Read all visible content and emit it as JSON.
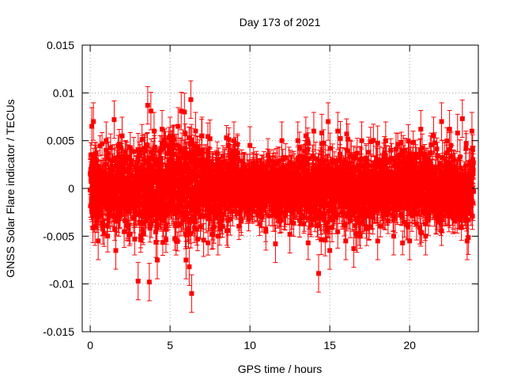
{
  "chart_data": {
    "type": "scatter",
    "title": "Day 173 of 2021",
    "xlabel": "GPS time / hours",
    "ylabel": "GNSS Solar Flare indicator / TECUs",
    "xlim": [
      -0.5,
      24.3
    ],
    "ylim": [
      -0.015,
      0.015
    ],
    "xticks": [
      0,
      5,
      10,
      15,
      20
    ],
    "xtick_labels": [
      "0",
      "5",
      "10",
      "15",
      "20"
    ],
    "yticks": [
      -0.015,
      -0.01,
      -0.005,
      0,
      0.005,
      0.01,
      0.015
    ],
    "ytick_labels": [
      "-0.015",
      "-0.01",
      "-0.005",
      "0",
      "0.005",
      "0.01",
      "0.015"
    ],
    "grid": true,
    "legend": "none",
    "series": [
      {
        "color": "#ff0000",
        "marker": "square",
        "error_bars": true,
        "x_range": [
          0,
          24
        ],
        "typical_error": 0.0014,
        "points": [
          {
            "x": 0.1,
            "y": 0.0065
          },
          {
            "x": 0.2,
            "y": 0.007
          },
          {
            "x": 0.3,
            "y": -0.004
          },
          {
            "x": 0.5,
            "y": -0.0055
          },
          {
            "x": 1.0,
            "y": 0.005
          },
          {
            "x": 1.5,
            "y": 0.0072
          },
          {
            "x": 1.6,
            "y": -0.0065
          },
          {
            "x": 2.0,
            "y": 0.0055
          },
          {
            "x": 3.0,
            "y": -0.0097
          },
          {
            "x": 3.6,
            "y": 0.0087
          },
          {
            "x": 3.7,
            "y": -0.0098
          },
          {
            "x": 3.8,
            "y": 0.0081
          },
          {
            "x": 4.0,
            "y": 0.006
          },
          {
            "x": 4.2,
            "y": -0.0075
          },
          {
            "x": 4.5,
            "y": 0.0062
          },
          {
            "x": 5.0,
            "y": 0.0055
          },
          {
            "x": 5.5,
            "y": 0.0065
          },
          {
            "x": 5.7,
            "y": 0.0081
          },
          {
            "x": 5.9,
            "y": 0.008
          },
          {
            "x": 6.0,
            "y": -0.0075
          },
          {
            "x": 6.2,
            "y": -0.0082
          },
          {
            "x": 6.3,
            "y": 0.0093
          },
          {
            "x": 6.35,
            "y": -0.011
          },
          {
            "x": 6.6,
            "y": 0.006
          },
          {
            "x": 7.0,
            "y": 0.0055
          },
          {
            "x": 7.5,
            "y": 0.0052
          },
          {
            "x": 8.0,
            "y": -0.005
          },
          {
            "x": 9.0,
            "y": 0.005
          },
          {
            "x": 10.0,
            "y": 0.0045
          },
          {
            "x": 11.0,
            "y": -0.0045
          },
          {
            "x": 11.6,
            "y": -0.0058
          },
          {
            "x": 12.0,
            "y": 0.005
          },
          {
            "x": 12.5,
            "y": -0.0048
          },
          {
            "x": 13.0,
            "y": 0.005
          },
          {
            "x": 13.5,
            "y": 0.0055
          },
          {
            "x": 14.0,
            "y": 0.006
          },
          {
            "x": 14.3,
            "y": -0.0089
          },
          {
            "x": 14.5,
            "y": 0.0058
          },
          {
            "x": 14.9,
            "y": 0.007
          },
          {
            "x": 15.0,
            "y": -0.0065
          },
          {
            "x": 15.5,
            "y": 0.006
          },
          {
            "x": 16.0,
            "y": -0.0055
          },
          {
            "x": 16.5,
            "y": -0.0063
          },
          {
            "x": 17.0,
            "y": 0.005
          },
          {
            "x": 18.0,
            "y": -0.0055
          },
          {
            "x": 18.5,
            "y": 0.005
          },
          {
            "x": 19.0,
            "y": -0.005
          },
          {
            "x": 20.0,
            "y": -0.0055
          },
          {
            "x": 20.7,
            "y": 0.0062
          },
          {
            "x": 21.0,
            "y": -0.005
          },
          {
            "x": 21.5,
            "y": 0.0055
          },
          {
            "x": 22.0,
            "y": 0.007
          },
          {
            "x": 22.5,
            "y": 0.0062
          },
          {
            "x": 23.0,
            "y": 0.0058
          },
          {
            "x": 23.3,
            "y": 0.0073
          },
          {
            "x": 23.6,
            "y": -0.0055
          },
          {
            "x": 23.9,
            "y": 0.006
          }
        ]
      }
    ]
  }
}
